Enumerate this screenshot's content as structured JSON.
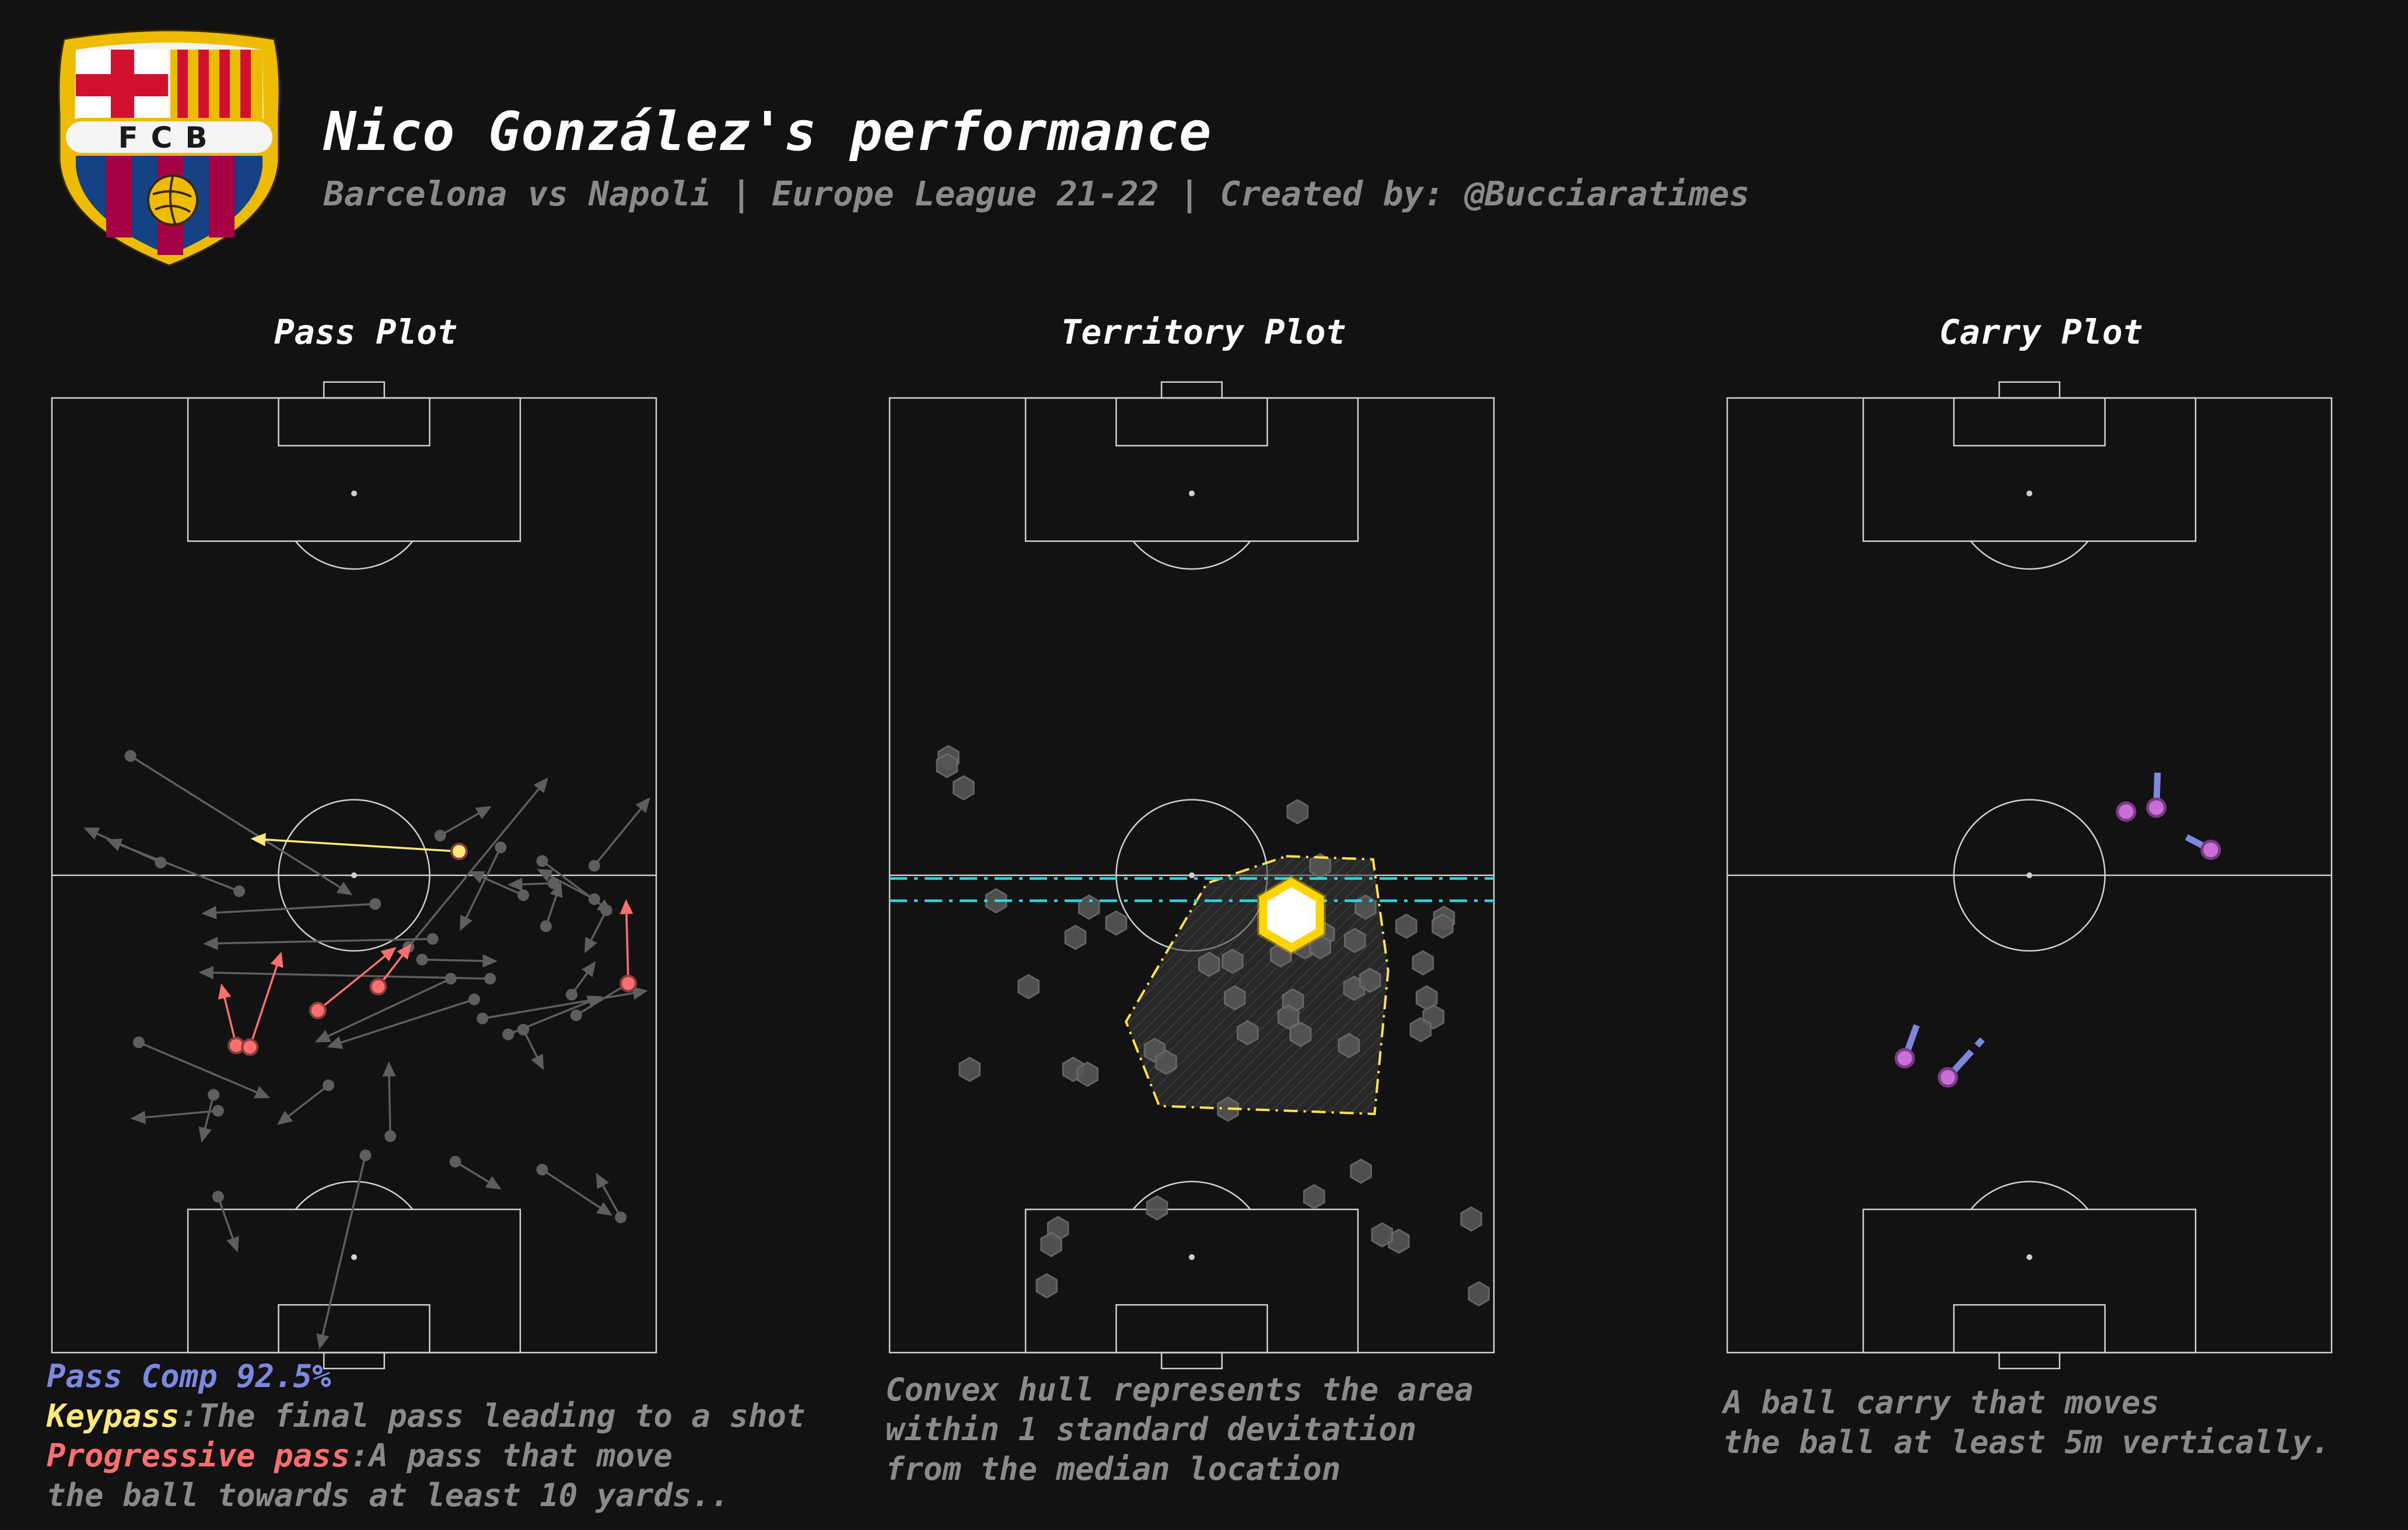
{
  "header": {
    "title": "Nico González's performance",
    "subtitle": "Barcelona vs Napoli | Europe League 21-22 | Created by: @Bucciaratimes",
    "logo_text": "FCB"
  },
  "colors": {
    "background": "#121212",
    "pitch_lines": "#d0d0d0",
    "pass_default": "#5e5e5e",
    "key_pass": "#ffe97a",
    "progressive_pass": "#ff6f6f",
    "pass_comp_text": "#7b88dd",
    "hull_line": "#ffe24a",
    "std_band_line": "#2fd3d8",
    "median_marker": "#ffd400",
    "carry_line": "#7b88dd",
    "carry_start": "#c86fd8"
  },
  "chart_data": [
    {
      "type": "pass_map",
      "title": "Pass Plot",
      "pitch": {
        "length": 120,
        "width": 80,
        "orientation": "vertical"
      },
      "categories": [
        "normal",
        "key",
        "progressive"
      ],
      "passes": [
        {
          "x1": 10.4,
          "y1": 75.0,
          "x2": 39.8,
          "y2": 57.5,
          "type": "normal"
        },
        {
          "x1": 14.4,
          "y1": 61.6,
          "x2": 4.2,
          "y2": 66.0,
          "type": "normal"
        },
        {
          "x1": 24.8,
          "y1": 58.0,
          "x2": 7.2,
          "y2": 64.5,
          "type": "normal"
        },
        {
          "x1": 53.9,
          "y1": 63.0,
          "x2": 26.3,
          "y2": 64.6,
          "type": "key"
        },
        {
          "x1": 42.8,
          "y1": 56.4,
          "x2": 19.8,
          "y2": 55.2,
          "type": "normal"
        },
        {
          "x1": 51.4,
          "y1": 65.0,
          "x2": 58.2,
          "y2": 68.7,
          "type": "normal"
        },
        {
          "x1": 47.2,
          "y1": 51.0,
          "x2": 65.7,
          "y2": 72.3,
          "type": "normal"
        },
        {
          "x1": 50.4,
          "y1": 52.0,
          "x2": 20.0,
          "y2": 51.4,
          "type": "normal"
        },
        {
          "x1": 59.4,
          "y1": 63.5,
          "x2": 54.0,
          "y2": 53.0,
          "type": "normal"
        },
        {
          "x1": 62.4,
          "y1": 57.5,
          "x2": 55.2,
          "y2": 60.5,
          "type": "normal"
        },
        {
          "x1": 64.9,
          "y1": 61.8,
          "x2": 74.2,
          "y2": 55.2,
          "type": "normal"
        },
        {
          "x1": 66.4,
          "y1": 59.0,
          "x2": 60.3,
          "y2": 58.8,
          "type": "normal"
        },
        {
          "x1": 65.4,
          "y1": 53.6,
          "x2": 67.4,
          "y2": 59.2,
          "type": "normal"
        },
        {
          "x1": 71.8,
          "y1": 57.0,
          "x2": 64.2,
          "y2": 60.8,
          "type": "normal"
        },
        {
          "x1": 71.8,
          "y1": 61.2,
          "x2": 79.2,
          "y2": 69.8,
          "type": "normal"
        },
        {
          "x1": 73.4,
          "y1": 55.6,
          "x2": 70.5,
          "y2": 50.2,
          "type": "normal"
        },
        {
          "x1": 76.3,
          "y1": 46.4,
          "x2": 76.0,
          "y2": 57.0,
          "type": "progressive"
        },
        {
          "x1": 69.4,
          "y1": 42.4,
          "x2": 77.3,
          "y2": 47.0,
          "type": "normal"
        },
        {
          "x1": 58.0,
          "y1": 47.0,
          "x2": 19.4,
          "y2": 47.8,
          "type": "normal"
        },
        {
          "x1": 49.0,
          "y1": 49.4,
          "x2": 59.0,
          "y2": 49.2,
          "type": "normal"
        },
        {
          "x1": 43.2,
          "y1": 46.0,
          "x2": 47.6,
          "y2": 51.4,
          "type": "progressive"
        },
        {
          "x1": 35.2,
          "y1": 43.0,
          "x2": 45.6,
          "y2": 51.0,
          "type": "progressive"
        },
        {
          "x1": 24.4,
          "y1": 38.6,
          "x2": 22.4,
          "y2": 46.4,
          "type": "progressive"
        },
        {
          "x1": 26.2,
          "y1": 38.4,
          "x2": 30.4,
          "y2": 50.4,
          "type": "progressive"
        },
        {
          "x1": 55.9,
          "y1": 44.4,
          "x2": 36.4,
          "y2": 38.4,
          "type": "normal"
        },
        {
          "x1": 57.0,
          "y1": 42.0,
          "x2": 78.9,
          "y2": 45.5,
          "type": "normal"
        },
        {
          "x1": 60.4,
          "y1": 40.0,
          "x2": 72.9,
          "y2": 44.8,
          "type": "normal"
        },
        {
          "x1": 62.4,
          "y1": 40.6,
          "x2": 65.1,
          "y2": 35.5,
          "type": "normal"
        },
        {
          "x1": 52.8,
          "y1": 47.0,
          "x2": 34.8,
          "y2": 39.0,
          "type": "normal"
        },
        {
          "x1": 68.8,
          "y1": 45.0,
          "x2": 72.0,
          "y2": 49.2,
          "type": "normal"
        },
        {
          "x1": 11.5,
          "y1": 39.0,
          "x2": 28.9,
          "y2": 32.0,
          "type": "normal"
        },
        {
          "x1": 36.6,
          "y1": 33.6,
          "x2": 29.8,
          "y2": 28.6,
          "type": "normal"
        },
        {
          "x1": 44.8,
          "y1": 27.2,
          "x2": 44.6,
          "y2": 36.6,
          "type": "normal"
        },
        {
          "x1": 22.0,
          "y1": 30.4,
          "x2": 10.4,
          "y2": 29.4,
          "type": "normal"
        },
        {
          "x1": 21.4,
          "y1": 32.4,
          "x2": 19.8,
          "y2": 26.4,
          "type": "normal"
        },
        {
          "x1": 41.5,
          "y1": 24.8,
          "x2": 35.4,
          "y2": 0.4,
          "type": "normal"
        },
        {
          "x1": 53.4,
          "y1": 24.0,
          "x2": 59.5,
          "y2": 20.5,
          "type": "normal"
        },
        {
          "x1": 64.9,
          "y1": 23.0,
          "x2": 74.2,
          "y2": 17.2,
          "type": "normal"
        },
        {
          "x1": 75.3,
          "y1": 17.0,
          "x2": 72.0,
          "y2": 22.6,
          "type": "normal"
        },
        {
          "x1": 22.0,
          "y1": 19.6,
          "x2": 24.6,
          "y2": 12.6,
          "type": "normal"
        }
      ]
    },
    {
      "type": "scatter",
      "title": "Territory Plot",
      "pitch": {
        "length": 120,
        "width": 80,
        "orientation": "vertical"
      },
      "points": [
        {
          "x": 7.8,
          "y": 74.8
        },
        {
          "x": 7.6,
          "y": 73.8
        },
        {
          "x": 9.8,
          "y": 71.0
        },
        {
          "x": 54.0,
          "y": 68.0
        },
        {
          "x": 57.0,
          "y": 61.2
        },
        {
          "x": 14.1,
          "y": 56.8
        },
        {
          "x": 26.4,
          "y": 56.0
        },
        {
          "x": 30.0,
          "y": 54.0
        },
        {
          "x": 24.6,
          "y": 52.2
        },
        {
          "x": 53.4,
          "y": 55.0
        },
        {
          "x": 63.0,
          "y": 56.0
        },
        {
          "x": 53.0,
          "y": 53.0
        },
        {
          "x": 57.5,
          "y": 52.6
        },
        {
          "x": 55.0,
          "y": 51.0
        },
        {
          "x": 57.0,
          "y": 51.0
        },
        {
          "x": 51.8,
          "y": 50.0
        },
        {
          "x": 61.6,
          "y": 51.8
        },
        {
          "x": 68.4,
          "y": 53.6
        },
        {
          "x": 73.4,
          "y": 54.6
        },
        {
          "x": 73.2,
          "y": 53.6
        },
        {
          "x": 70.6,
          "y": 49.0
        },
        {
          "x": 45.4,
          "y": 49.2
        },
        {
          "x": 42.3,
          "y": 48.8
        },
        {
          "x": 18.4,
          "y": 46.0
        },
        {
          "x": 45.7,
          "y": 44.6
        },
        {
          "x": 53.4,
          "y": 44.2
        },
        {
          "x": 61.5,
          "y": 45.8
        },
        {
          "x": 63.6,
          "y": 46.8
        },
        {
          "x": 71.1,
          "y": 44.6
        },
        {
          "x": 72.0,
          "y": 42.2
        },
        {
          "x": 70.3,
          "y": 40.6
        },
        {
          "x": 47.4,
          "y": 40.2
        },
        {
          "x": 54.4,
          "y": 40.0
        },
        {
          "x": 52.8,
          "y": 42.2
        },
        {
          "x": 60.8,
          "y": 38.6
        },
        {
          "x": 35.1,
          "y": 38.0
        },
        {
          "x": 36.6,
          "y": 36.5
        },
        {
          "x": 24.3,
          "y": 35.6
        },
        {
          "x": 26.2,
          "y": 35.0
        },
        {
          "x": 10.6,
          "y": 35.6
        },
        {
          "x": 62.4,
          "y": 22.8
        },
        {
          "x": 22.3,
          "y": 15.6
        },
        {
          "x": 44.8,
          "y": 30.6
        },
        {
          "x": 35.4,
          "y": 18.2
        },
        {
          "x": 21.4,
          "y": 13.6
        },
        {
          "x": 67.4,
          "y": 14.0
        },
        {
          "x": 56.2,
          "y": 19.6
        },
        {
          "x": 77.0,
          "y": 16.8
        },
        {
          "x": 78.0,
          "y": 7.4
        },
        {
          "x": 20.8,
          "y": 8.4
        },
        {
          "x": 65.2,
          "y": 14.8
        }
      ],
      "median": {
        "x": 53.2,
        "y": 55.0
      },
      "std_band_y": [
        59.6,
        56.8
      ],
      "hull": [
        {
          "x": 52.5,
          "y": 62.4
        },
        {
          "x": 64.0,
          "y": 62.0
        },
        {
          "x": 66.0,
          "y": 48.0
        },
        {
          "x": 64.2,
          "y": 30.0
        },
        {
          "x": 35.7,
          "y": 31.0
        },
        {
          "x": 31.3,
          "y": 41.6
        },
        {
          "x": 42.0,
          "y": 59.0
        }
      ]
    },
    {
      "type": "carry_map",
      "title": "Carry Plot",
      "pitch": {
        "length": 120,
        "width": 80,
        "orientation": "vertical"
      },
      "carries": [
        {
          "x1": 56.8,
          "y1": 68.5,
          "x2": 57.0,
          "y2": 73.8
        },
        {
          "x1": 52.8,
          "y1": 68.0,
          "x2": 53.4,
          "y2": 69.0
        },
        {
          "x1": 64.0,
          "y1": 63.2,
          "x2": 60.8,
          "y2": 64.8
        },
        {
          "x1": 23.5,
          "y1": 37.0,
          "x2": 25.4,
          "y2": 42.0
        },
        {
          "x1": 29.2,
          "y1": 34.6,
          "x2": 34.4,
          "y2": 40.0
        }
      ]
    }
  ],
  "panels": {
    "pass": {
      "title": "Pass Plot",
      "comp_label": "Pass Comp 92.5%",
      "key_label": "Keypass",
      "key_desc": ":The final pass leading to a shot",
      "prog_label": "Progressive pass",
      "prog_desc": ":A pass that move",
      "prog_desc_2": "the ball towards at least 10 yards.."
    },
    "territory": {
      "title": "Territory Plot",
      "note_1": "Convex hull represents the area",
      "note_2": "within 1 standard devitation",
      "note_3": "from the median location"
    },
    "carry": {
      "title": "Carry Plot",
      "note_1": "A ball carry that moves",
      "note_2": "the ball at least 5m vertically."
    }
  }
}
